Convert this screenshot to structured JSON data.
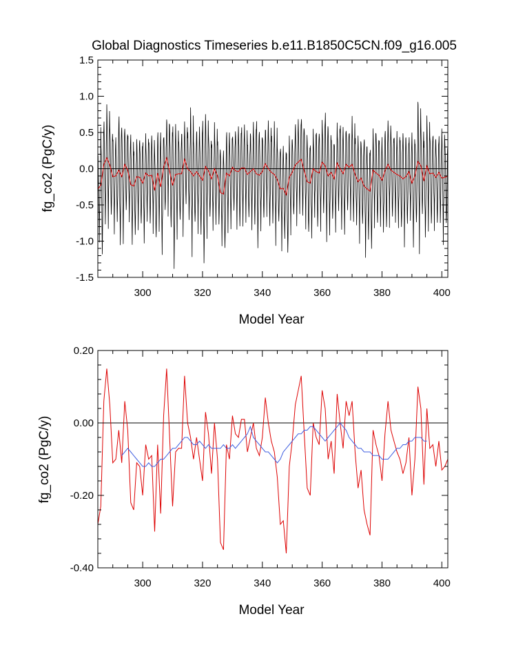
{
  "chart_data": [
    {
      "type": "line",
      "title": "Global Diagnostics Timeseries b.e11.B1850C5CN.f09_g16.005",
      "xlabel": "Model Year",
      "ylabel": "fg_co2 (PgC/y)",
      "xlim": [
        285,
        402
      ],
      "ylim": [
        -1.5,
        1.5
      ],
      "xticks": [
        300,
        320,
        340,
        360,
        380,
        400
      ],
      "xtick_labels": [
        "300",
        "320",
        "340",
        "360",
        "380",
        "400"
      ],
      "yticks": [
        -1.5,
        -1.0,
        -0.5,
        0.0,
        0.5,
        1.0,
        1.5
      ],
      "ytick_labels": [
        "-1.5",
        "-1.0",
        "-0.5",
        "0.0",
        "0.5",
        "1.0",
        "1.5"
      ],
      "reference_line": 0,
      "series": [
        {
          "color": "#000000",
          "description_shown": "monthly values, strong seasonal cycle",
          "x_start": 285,
          "x_step": 0.0833333,
          "seasonal_amplitude": [
            0.55,
            0.85,
            0.7,
            0.75,
            0.65,
            0.6,
            0.55,
            0.9,
            0.7,
            0.6,
            0.55,
            0.7,
            0.6,
            0.55,
            0.6,
            0.65,
            0.55,
            0.6,
            0.6,
            0.6,
            0.65,
            0.75,
            0.55,
            0.6,
            0.7,
            0.95,
            0.7,
            0.6,
            0.65,
            0.55,
            0.6,
            0.9,
            0.6,
            0.65,
            0.7,
            1.0,
            0.75,
            0.6,
            0.55,
            0.65,
            0.6,
            0.55,
            0.7,
            0.65,
            0.6,
            0.55,
            0.6,
            0.7,
            0.65,
            0.6,
            0.55,
            0.6,
            0.7,
            0.85,
            0.6,
            0.6,
            0.55,
            0.7,
            0.6,
            0.75,
            0.55,
            0.65,
            0.6,
            0.7,
            0.6,
            0.55,
            0.65,
            0.6,
            0.7,
            0.6,
            0.65,
            0.6,
            0.55,
            0.7,
            0.6,
            0.65,
            0.85,
            0.65,
            0.6,
            0.55,
            0.6,
            0.7,
            0.65,
            0.6,
            0.55,
            0.7,
            0.6,
            0.65,
            0.6,
            0.75,
            0.6,
            0.7,
            0.6,
            0.65,
            0.55,
            0.6,
            0.7,
            0.65,
            0.6,
            0.55,
            0.6,
            0.65,
            0.7,
            0.6,
            0.55,
            0.7,
            0.6,
            0.95,
            0.6,
            0.65,
            0.7,
            0.65,
            0.6,
            0.55,
            0.6,
            0.7,
            0.6
          ]
        },
        {
          "color": "#dd0000",
          "description_shown": "annual mean",
          "x": [
            285,
            286,
            287,
            288,
            289,
            290,
            291,
            292,
            293,
            294,
            295,
            296,
            297,
            298,
            299,
            300,
            301,
            302,
            303,
            304,
            305,
            306,
            307,
            308,
            309,
            310,
            311,
            312,
            313,
            314,
            315,
            316,
            317,
            318,
            319,
            320,
            321,
            322,
            323,
            324,
            325,
            326,
            327,
            328,
            329,
            330,
            331,
            332,
            333,
            334,
            335,
            336,
            337,
            338,
            339,
            340,
            341,
            342,
            343,
            344,
            345,
            346,
            347,
            348,
            349,
            350,
            351,
            352,
            353,
            354,
            355,
            356,
            357,
            358,
            359,
            360,
            361,
            362,
            363,
            364,
            365,
            366,
            367,
            368,
            369,
            370,
            371,
            372,
            373,
            374,
            375,
            376,
            377,
            378,
            379,
            380,
            381,
            382,
            383,
            384,
            385,
            386,
            387,
            388,
            389,
            390,
            391,
            392,
            393,
            394,
            395,
            396,
            397,
            398,
            399,
            400,
            401,
            402
          ],
          "values": [
            -0.28,
            -0.23,
            0.06,
            0.15,
            0.05,
            -0.11,
            -0.1,
            -0.02,
            -0.11,
            0.06,
            -0.02,
            -0.22,
            -0.24,
            -0.11,
            -0.12,
            -0.2,
            -0.06,
            -0.1,
            -0.09,
            -0.3,
            -0.06,
            -0.25,
            0.02,
            0.15,
            -0.04,
            -0.23,
            -0.08,
            -0.07,
            -0.07,
            0.13,
            0.0,
            -0.04,
            -0.1,
            -0.04,
            -0.1,
            -0.16,
            0.03,
            -0.03,
            -0.14,
            0.0,
            -0.1,
            -0.33,
            -0.35,
            -0.06,
            -0.1,
            0.02,
            -0.03,
            -0.04,
            0.01,
            0.01,
            -0.08,
            -0.04,
            0.0,
            -0.07,
            -0.09,
            -0.04,
            0.07,
            0.0,
            -0.05,
            -0.08,
            -0.15,
            -0.28,
            -0.27,
            -0.36,
            -0.12,
            -0.05,
            0.05,
            0.09,
            0.13,
            -0.03,
            -0.18,
            -0.2,
            0.0,
            -0.04,
            -0.06,
            0.09,
            0.04,
            -0.1,
            -0.05,
            -0.14,
            0.08,
            0.0,
            -0.07,
            0.06,
            0.02,
            0.06,
            -0.08,
            -0.18,
            -0.13,
            -0.24,
            -0.28,
            -0.31,
            -0.02,
            -0.06,
            -0.09,
            -0.16,
            -0.03,
            0.06,
            -0.02,
            -0.05,
            -0.08,
            -0.1,
            -0.14,
            -0.11,
            -0.04,
            -0.2,
            -0.1,
            0.1,
            0.04,
            -0.17,
            0.04,
            -0.07,
            -0.06,
            -0.12,
            -0.05,
            -0.13,
            -0.12,
            -0.1
          ]
        }
      ]
    },
    {
      "type": "line",
      "title": "",
      "xlabel": "Model Year",
      "ylabel": "fg_co2 (PgC/y)",
      "xlim": [
        285,
        402
      ],
      "ylim": [
        -0.4,
        0.2
      ],
      "xticks": [
        300,
        320,
        340,
        360,
        380,
        400
      ],
      "xtick_labels": [
        "300",
        "320",
        "340",
        "360",
        "380",
        "400"
      ],
      "yticks": [
        -0.4,
        -0.2,
        0.0,
        0.2
      ],
      "ytick_labels": [
        "-0.40",
        "-0.20",
        "0.00",
        "0.20"
      ],
      "reference_line": 0,
      "series": [
        {
          "color": "#dd0000",
          "x": [
            285,
            286,
            287,
            288,
            289,
            290,
            291,
            292,
            293,
            294,
            295,
            296,
            297,
            298,
            299,
            300,
            301,
            302,
            303,
            304,
            305,
            306,
            307,
            308,
            309,
            310,
            311,
            312,
            313,
            314,
            315,
            316,
            317,
            318,
            319,
            320,
            321,
            322,
            323,
            324,
            325,
            326,
            327,
            328,
            329,
            330,
            331,
            332,
            333,
            334,
            335,
            336,
            337,
            338,
            339,
            340,
            341,
            342,
            343,
            344,
            345,
            346,
            347,
            348,
            349,
            350,
            351,
            352,
            353,
            354,
            355,
            356,
            357,
            358,
            359,
            360,
            361,
            362,
            363,
            364,
            365,
            366,
            367,
            368,
            369,
            370,
            371,
            372,
            373,
            374,
            375,
            376,
            377,
            378,
            379,
            380,
            381,
            382,
            383,
            384,
            385,
            386,
            387,
            388,
            389,
            390,
            391,
            392,
            393,
            394,
            395,
            396,
            397,
            398,
            399,
            400,
            401,
            402
          ],
          "values": [
            -0.28,
            -0.23,
            0.06,
            0.15,
            0.05,
            -0.11,
            -0.1,
            -0.02,
            -0.11,
            0.06,
            -0.02,
            -0.22,
            -0.24,
            -0.11,
            -0.12,
            -0.2,
            -0.06,
            -0.1,
            -0.09,
            -0.3,
            -0.06,
            -0.25,
            0.02,
            0.15,
            -0.04,
            -0.23,
            -0.08,
            -0.07,
            -0.07,
            0.13,
            0.0,
            -0.04,
            -0.1,
            -0.04,
            -0.1,
            -0.16,
            0.03,
            -0.03,
            -0.14,
            0.0,
            -0.1,
            -0.33,
            -0.35,
            -0.06,
            -0.1,
            0.02,
            -0.03,
            -0.04,
            0.01,
            0.01,
            -0.08,
            -0.04,
            0.0,
            -0.07,
            -0.09,
            -0.04,
            0.07,
            0.0,
            -0.05,
            -0.08,
            -0.15,
            -0.28,
            -0.27,
            -0.36,
            -0.12,
            -0.05,
            0.05,
            0.09,
            0.13,
            -0.03,
            -0.18,
            -0.2,
            0.0,
            -0.04,
            -0.06,
            0.09,
            0.04,
            -0.1,
            -0.05,
            -0.14,
            0.08,
            0.0,
            -0.07,
            0.06,
            0.02,
            0.06,
            -0.08,
            -0.18,
            -0.13,
            -0.24,
            -0.28,
            -0.31,
            -0.02,
            -0.06,
            -0.09,
            -0.16,
            -0.03,
            0.06,
            -0.02,
            -0.05,
            -0.08,
            -0.1,
            -0.14,
            -0.11,
            -0.04,
            -0.2,
            -0.1,
            0.1,
            0.04,
            -0.17,
            0.04,
            -0.07,
            -0.06,
            -0.12,
            -0.05,
            -0.13,
            -0.12,
            -0.1
          ]
        },
        {
          "color": "#4060e0",
          "x": [
            293,
            294,
            295,
            296,
            297,
            298,
            299,
            300,
            301,
            302,
            303,
            304,
            305,
            306,
            307,
            308,
            309,
            310,
            311,
            312,
            313,
            314,
            315,
            316,
            317,
            318,
            319,
            320,
            321,
            322,
            323,
            324,
            325,
            326,
            327,
            328,
            329,
            330,
            331,
            332,
            333,
            334,
            335,
            336,
            337,
            338,
            339,
            340,
            341,
            342,
            343,
            344,
            345,
            346,
            347,
            348,
            349,
            350,
            351,
            352,
            353,
            354,
            355,
            356,
            357,
            358,
            359,
            360,
            361,
            362,
            363,
            364,
            365,
            366,
            367,
            368,
            369,
            370,
            371,
            372,
            373,
            374,
            375,
            376,
            377,
            378,
            379,
            380,
            381,
            382,
            383,
            384,
            385,
            386,
            387,
            388,
            389,
            390,
            391,
            392,
            393,
            394,
            395
          ],
          "values": [
            -0.09,
            -0.08,
            -0.07,
            -0.08,
            -0.09,
            -0.1,
            -0.11,
            -0.12,
            -0.12,
            -0.11,
            -0.12,
            -0.12,
            -0.11,
            -0.1,
            -0.1,
            -0.09,
            -0.08,
            -0.07,
            -0.07,
            -0.06,
            -0.05,
            -0.04,
            -0.04,
            -0.05,
            -0.06,
            -0.06,
            -0.05,
            -0.06,
            -0.07,
            -0.06,
            -0.07,
            -0.07,
            -0.07,
            -0.07,
            -0.06,
            -0.07,
            -0.07,
            -0.06,
            -0.07,
            -0.06,
            -0.05,
            -0.04,
            -0.03,
            -0.01,
            -0.04,
            -0.05,
            -0.06,
            -0.07,
            -0.08,
            -0.08,
            -0.09,
            -0.1,
            -0.11,
            -0.1,
            -0.08,
            -0.07,
            -0.06,
            -0.05,
            -0.04,
            -0.03,
            -0.03,
            -0.02,
            -0.02,
            -0.01,
            -0.01,
            -0.02,
            -0.03,
            -0.04,
            -0.05,
            -0.04,
            -0.03,
            -0.02,
            -0.01,
            0.0,
            -0.01,
            -0.02,
            -0.04,
            -0.05,
            -0.06,
            -0.07,
            -0.07,
            -0.08,
            -0.08,
            -0.08,
            -0.09,
            -0.09,
            -0.09,
            -0.1,
            -0.1,
            -0.1,
            -0.09,
            -0.08,
            -0.07,
            -0.07,
            -0.06,
            -0.06,
            -0.05,
            -0.05,
            -0.04,
            -0.04,
            -0.04,
            -0.05,
            -0.05
          ]
        }
      ]
    }
  ]
}
